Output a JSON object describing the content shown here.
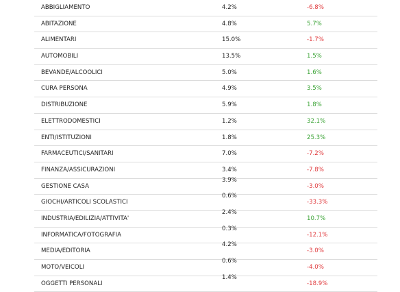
{
  "colors": {
    "positive": "#3aa335",
    "negative": "#e0393c",
    "text": "#1f1f1f",
    "row_border": "#dcdcdc"
  },
  "rows": [
    {
      "label": "ABBIGLIAMENTO",
      "share": "4.2%",
      "change": "-6.8%",
      "trend": "negative"
    },
    {
      "label": "ABITAZIONE",
      "share": "4.8%",
      "change": "5.7%",
      "trend": "positive"
    },
    {
      "label": "ALIMENTARI",
      "share": "15.0%",
      "change": "-1.7%",
      "trend": "negative"
    },
    {
      "label": "AUTOMOBILI",
      "share": "13.5%",
      "change": "1.5%",
      "trend": "positive"
    },
    {
      "label": "BEVANDE/ALCOOLICI",
      "share": "5.0%",
      "change": "1.6%",
      "trend": "positive"
    },
    {
      "label": "CURA PERSONA",
      "share": "4.9%",
      "change": "3.5%",
      "trend": "positive"
    },
    {
      "label": "DISTRIBUZIONE",
      "share": "5.9%",
      "change": "1.8%",
      "trend": "positive"
    },
    {
      "label": "ELETTRODOMESTICI",
      "share": "1.2%",
      "change": "32.1%",
      "trend": "positive"
    },
    {
      "label": "ENTI/ISTITUZIONI",
      "share": "1.8%",
      "change": "25.3%",
      "trend": "positive"
    },
    {
      "label": "FARMACEUTICI/SANITARI",
      "share": "7.0%",
      "change": "-7.2%",
      "trend": "negative"
    },
    {
      "label": "FINANZA/ASSICURAZIONI",
      "share": "3.4%",
      "change": "-7.8%",
      "trend": "negative"
    },
    {
      "label": "GESTIONE CASA",
      "share": "3.9%",
      "change": "-3.0%",
      "trend": "negative"
    },
    {
      "label": "GIOCHI/ARTICOLI SCOLASTICI",
      "share": "0.6%",
      "change": "-33.3%",
      "trend": "negative"
    },
    {
      "label": "INDUSTRIA/EDILIZIA/ATTIVITA'",
      "share": "2.4%",
      "change": "10.7%",
      "trend": "positive"
    },
    {
      "label": "INFORMATICA/FOTOGRAFIA",
      "share": "0.3%",
      "change": "-12.1%",
      "trend": "negative"
    },
    {
      "label": "MEDIA/EDITORIA",
      "share": "4.2%",
      "change": "-3.0%",
      "trend": "negative"
    },
    {
      "label": "MOTO/VEICOLI",
      "share": "0.6%",
      "change": "-4.0%",
      "trend": "negative"
    },
    {
      "label": "OGGETTI PERSONALI",
      "share": "1.4%",
      "change": "-18.9%",
      "trend": "negative"
    }
  ]
}
